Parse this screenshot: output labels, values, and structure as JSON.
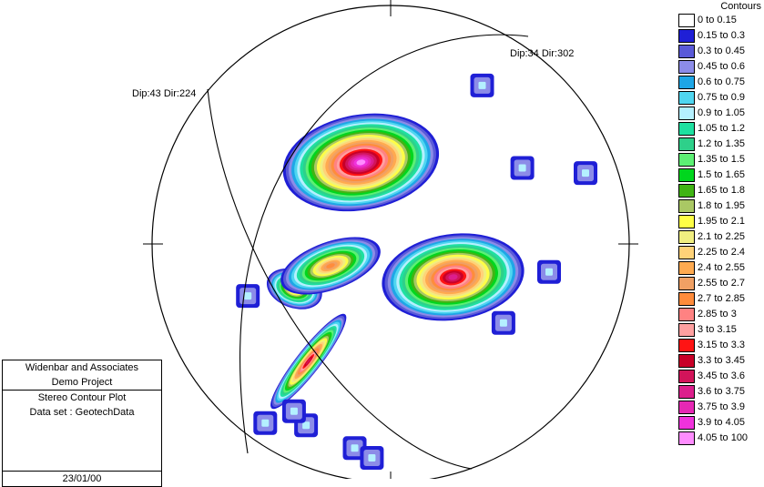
{
  "chart_data": {
    "type": "heatmap",
    "title": "Stereo Contour Plot",
    "legend_title": "Contours",
    "legend_position": "right",
    "contour_levels": [
      {
        "label": "0 to 0.15",
        "color": "#ffffff"
      },
      {
        "label": "0.15 to 0.3",
        "color": "#1f1fd6"
      },
      {
        "label": "0.3 to 0.45",
        "color": "#5a5ad8"
      },
      {
        "label": "0.45 to 0.6",
        "color": "#8c8ce8"
      },
      {
        "label": "0.6 to 0.75",
        "color": "#1ea6e6"
      },
      {
        "label": "0.75 to 0.9",
        "color": "#4fd6f0"
      },
      {
        "label": "0.9 to 1.05",
        "color": "#b4f0ff"
      },
      {
        "label": "1.05 to 1.2",
        "color": "#1ee0a0"
      },
      {
        "label": "1.2 to 1.35",
        "color": "#2ed08a"
      },
      {
        "label": "1.35 to 1.5",
        "color": "#5cf074"
      },
      {
        "label": "1.5 to 1.65",
        "color": "#00d61e"
      },
      {
        "label": "1.65 to 1.8",
        "color": "#40b414"
      },
      {
        "label": "1.8 to 1.95",
        "color": "#aac864"
      },
      {
        "label": "1.95 to 2.1",
        "color": "#ffff46"
      },
      {
        "label": "2.1 to 2.25",
        "color": "#f0ee80"
      },
      {
        "label": "2.25 to 2.4",
        "color": "#ffd278"
      },
      {
        "label": "2.4 to 2.55",
        "color": "#ffaa50"
      },
      {
        "label": "2.55 to 2.7",
        "color": "#f0a064"
      },
      {
        "label": "2.7 to 2.85",
        "color": "#ff8c3c"
      },
      {
        "label": "2.85 to 3",
        "color": "#ff8282"
      },
      {
        "label": "3 to 3.15",
        "color": "#ffa0a0"
      },
      {
        "label": "3.15 to 3.3",
        "color": "#ff1414"
      },
      {
        "label": "3.3 to 3.45",
        "color": "#c80028"
      },
      {
        "label": "3.45 to 3.6",
        "color": "#d2145a"
      },
      {
        "label": "3.6 to 3.75",
        "color": "#dc1e8c"
      },
      {
        "label": "3.75 to 3.9",
        "color": "#e628b4"
      },
      {
        "label": "3.9 to 4.05",
        "color": "#f032dc"
      },
      {
        "label": "4.05 to 100",
        "color": "#ff8cff"
      }
    ],
    "annotations": [
      {
        "text": "Dip:43 Dir:224"
      },
      {
        "text": "Dip:34 Dir:302"
      }
    ],
    "great_circles": [
      {
        "dip": 43,
        "dip_direction": 224
      },
      {
        "dip": 34,
        "dip_direction": 302
      }
    ],
    "clusters": [
      {
        "trend": 340,
        "plunge": 50,
        "peak_level": "4.05 to 100"
      },
      {
        "trend": 215,
        "plunge": 28,
        "peak_level": "3.45 to 3.6"
      },
      {
        "trend": 118,
        "plunge": 57,
        "peak_level": "3.6 to 3.75"
      },
      {
        "trend": 245,
        "plunge": 42,
        "peak_level": "2.55 to 2.7"
      },
      {
        "trend": 250,
        "plunge": 60,
        "peak_level": "2.7 to 2.85"
      }
    ]
  },
  "info_box": {
    "company": "Widenbar and Associates",
    "project": "Demo Project",
    "plot_type": "Stereo Contour Plot",
    "dataset": "Data set : GeotechData",
    "date": "23/01/00"
  }
}
